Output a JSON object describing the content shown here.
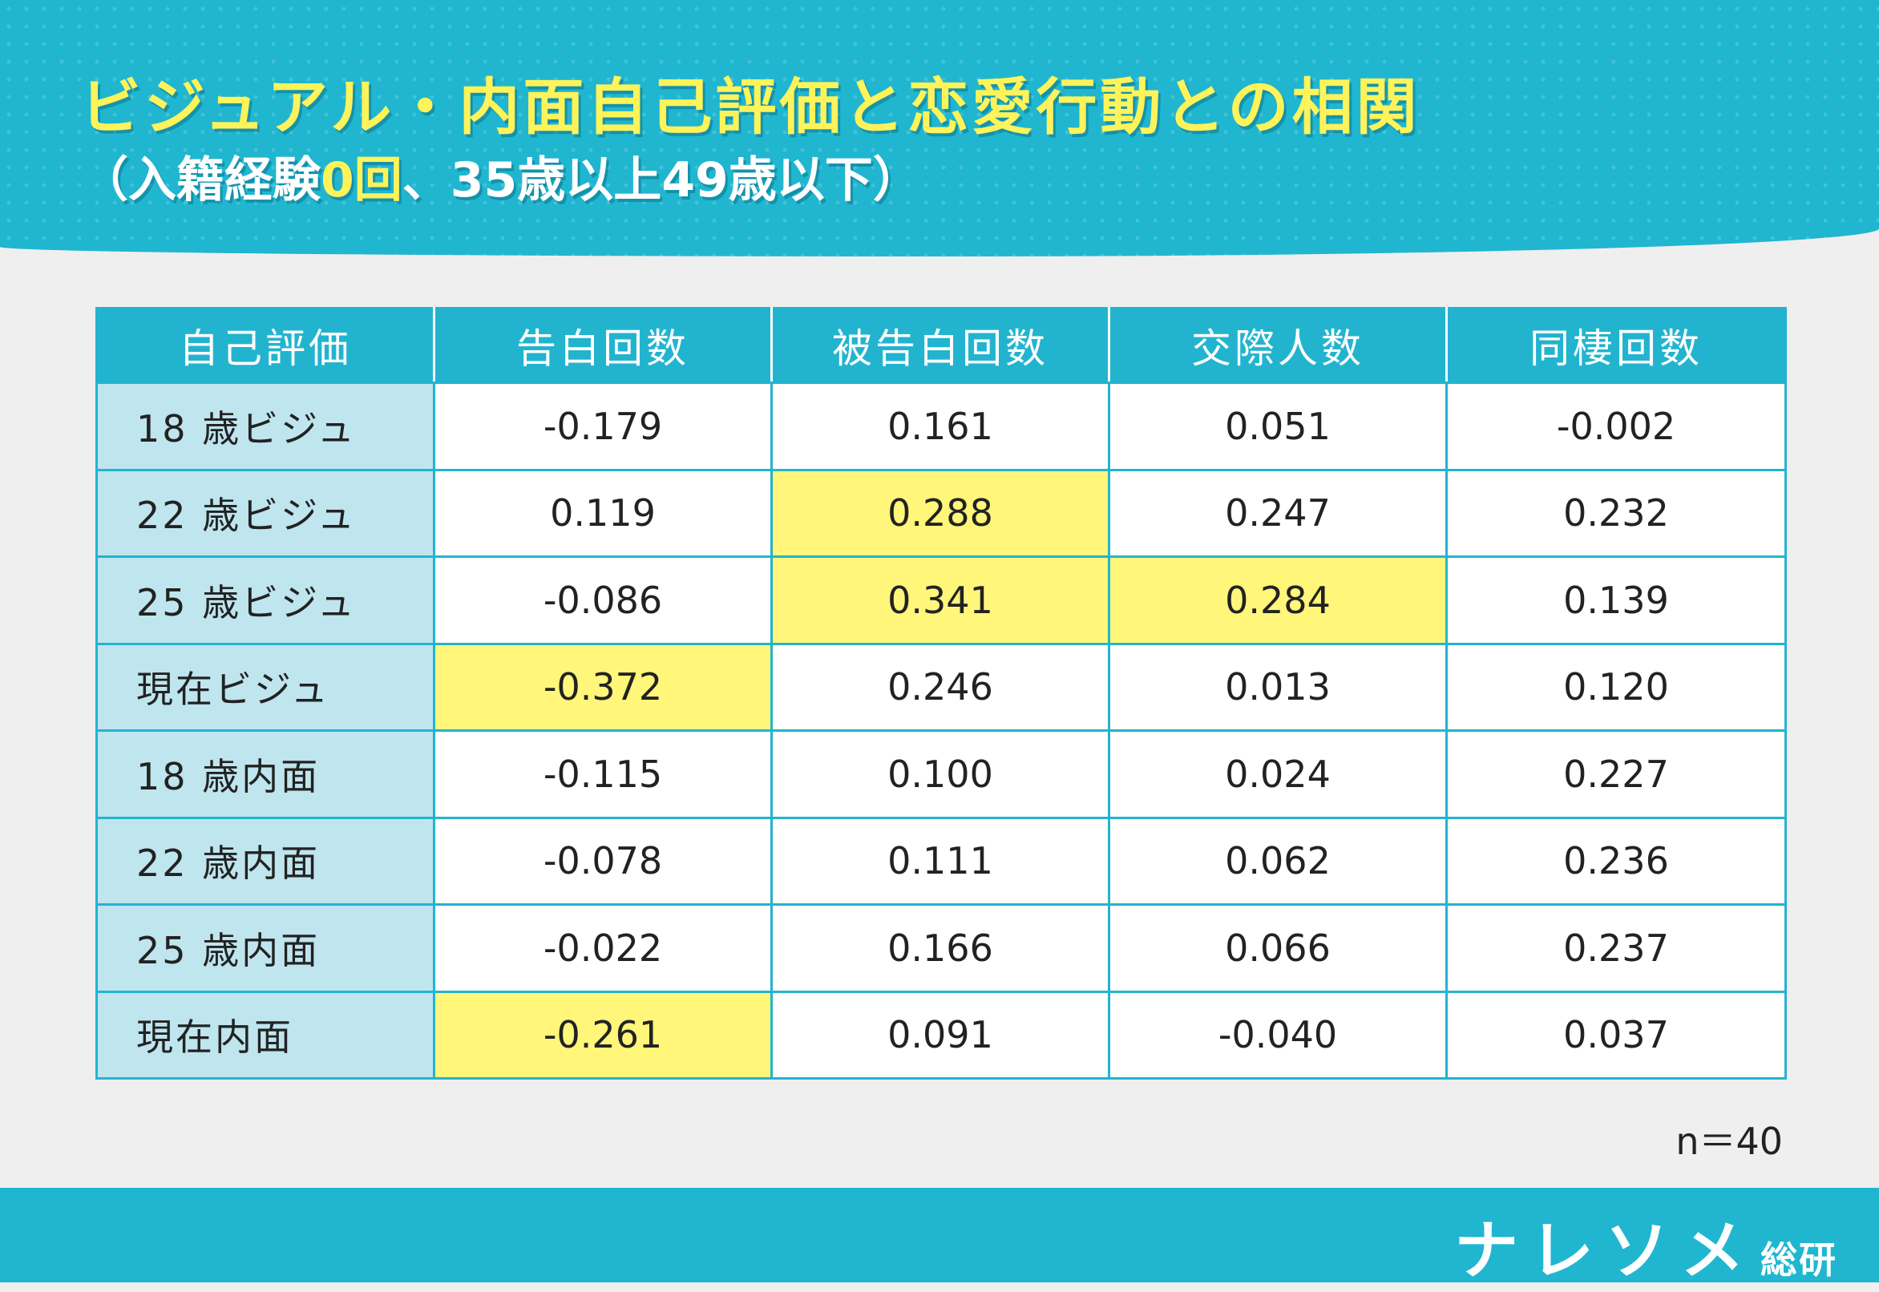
{
  "header": {
    "title": "ビジュアル・内面自己評価と恋愛行動との相関",
    "subtitle_prefix": "（入籍経験",
    "subtitle_highlight": "0回",
    "subtitle_suffix": "、35歳以上49歳以下）",
    "accent_color": "#20b6d0",
    "title_color": "#fff35a"
  },
  "chart_data": {
    "type": "table",
    "columns": [
      "自己評価",
      "告白回数",
      "被告白回数",
      "交際人数",
      "同棲回数"
    ],
    "rows": [
      {
        "label": "18 歳ビジュ",
        "values": [
          "-0.179",
          "0.161",
          "0.051",
          "-0.002"
        ],
        "highlight": [
          false,
          false,
          false,
          false
        ]
      },
      {
        "label": "22 歳ビジュ",
        "values": [
          "0.119",
          "0.288",
          "0.247",
          "0.232"
        ],
        "highlight": [
          false,
          true,
          false,
          false
        ]
      },
      {
        "label": "25 歳ビジュ",
        "values": [
          "-0.086",
          "0.341",
          "0.284",
          "0.139"
        ],
        "highlight": [
          false,
          true,
          true,
          false
        ]
      },
      {
        "label": "現在ビジュ",
        "values": [
          "-0.372",
          "0.246",
          "0.013",
          "0.120"
        ],
        "highlight": [
          true,
          false,
          false,
          false
        ]
      },
      {
        "label": "18 歳内面",
        "values": [
          "-0.115",
          "0.100",
          "0.024",
          "0.227"
        ],
        "highlight": [
          false,
          false,
          false,
          false
        ]
      },
      {
        "label": "22 歳内面",
        "values": [
          "-0.078",
          "0.111",
          "0.062",
          "0.236"
        ],
        "highlight": [
          false,
          false,
          false,
          false
        ]
      },
      {
        "label": "25 歳内面",
        "values": [
          "-0.022",
          "0.166",
          "0.066",
          "0.237"
        ],
        "highlight": [
          false,
          false,
          false,
          false
        ]
      },
      {
        "label": "現在内面",
        "values": [
          "-0.261",
          "0.091",
          "-0.040",
          "0.037"
        ],
        "highlight": [
          true,
          false,
          false,
          false
        ]
      }
    ],
    "highlight_color": "#fff67a",
    "label_column_color": "#bfe5ee"
  },
  "note": "n＝40",
  "footer": {
    "brand": "ナレソメ",
    "brand_sub": "総研"
  }
}
